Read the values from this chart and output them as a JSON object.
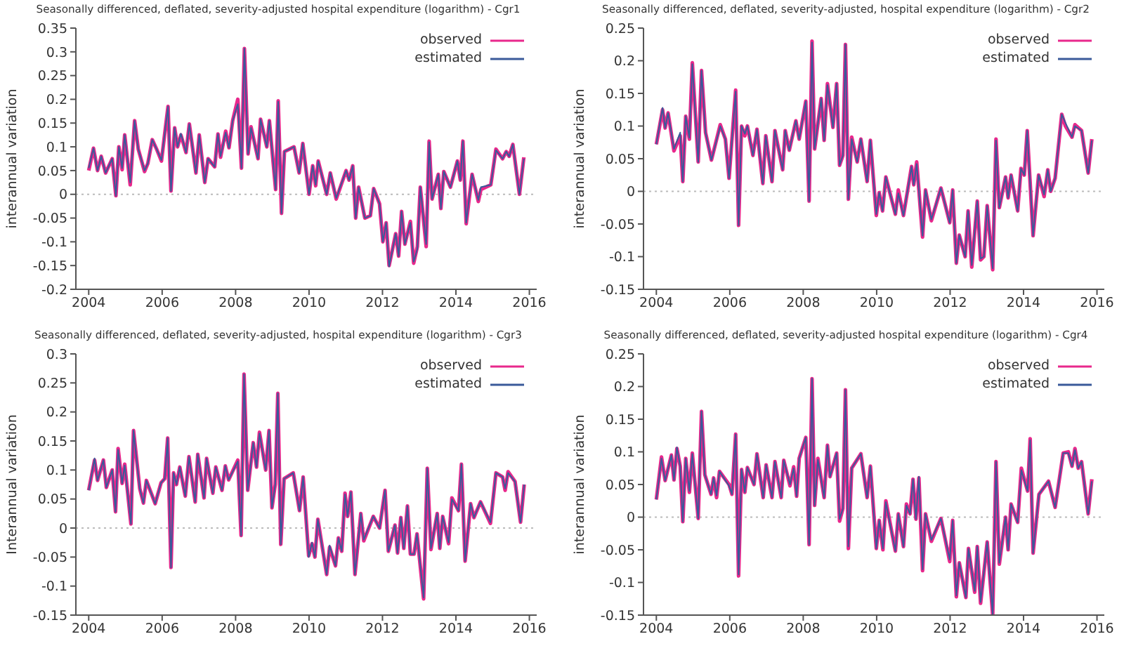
{
  "chart_data": [
    {
      "type": "line",
      "title": "Seasonally differenced, deflated, severity-adjusted hospital expenditure (logarithm) - Cgr1",
      "ylabel": "interannual variation",
      "xlim": [
        2003.65,
        2016.2
      ],
      "xticks": [
        2004,
        2006,
        2008,
        2010,
        2012,
        2014,
        2016
      ],
      "ylim": [
        -0.2,
        0.35
      ],
      "yticks": [
        -0.2,
        -0.15,
        -0.1,
        -0.05,
        0,
        0.05,
        0.1,
        0.15,
        0.2,
        0.25,
        0.3,
        0.35
      ],
      "legend": "top right",
      "ref_lines": [
        {
          "axis": "y",
          "value": 0,
          "color": "#bbbbbb",
          "line_style": "dotted"
        }
      ],
      "x": [
        2004.0,
        2004.13,
        2004.24,
        2004.34,
        2004.46,
        2004.64,
        2004.74,
        2004.82,
        2004.91,
        2004.98,
        2005.13,
        2005.25,
        2005.35,
        2005.52,
        2005.61,
        2005.73,
        2005.85,
        2005.98,
        2006.16,
        2006.24,
        2006.34,
        2006.42,
        2006.51,
        2006.65,
        2006.74,
        2006.92,
        2007.01,
        2007.16,
        2007.25,
        2007.43,
        2007.52,
        2007.59,
        2007.73,
        2007.82,
        2007.92,
        2008.06,
        2008.16,
        2008.24,
        2008.34,
        2008.42,
        2008.61,
        2008.68,
        2008.85,
        2008.92,
        2009.09,
        2009.16,
        2009.25,
        2009.33,
        2009.59,
        2009.73,
        2009.83,
        2010.0,
        2010.1,
        2010.18,
        2010.25,
        2010.48,
        2010.58,
        2010.74,
        2011.01,
        2011.09,
        2011.19,
        2011.27,
        2011.35,
        2011.52,
        2011.67,
        2011.76,
        2011.92,
        2012.01,
        2012.1,
        2012.18,
        2012.36,
        2012.44,
        2012.52,
        2012.61,
        2012.76,
        2012.85,
        2012.95,
        2013.03,
        2013.19,
        2013.27,
        2013.35,
        2013.52,
        2013.59,
        2013.67,
        2013.85,
        2014.04,
        2014.12,
        2014.19,
        2014.28,
        2014.44,
        2014.61,
        2014.68,
        2014.95,
        2015.09,
        2015.27,
        2015.37,
        2015.45,
        2015.55,
        2015.73,
        2015.85
      ],
      "series": [
        {
          "name": "observed",
          "color": "#e8288c",
          "values": [
            0.05,
            0.097,
            0.05,
            0.08,
            0.045,
            0.075,
            -0.003,
            0.1,
            0.052,
            0.125,
            0.02,
            0.155,
            0.095,
            0.048,
            0.065,
            0.115,
            0.095,
            0.07,
            0.185,
            0.007,
            0.14,
            0.1,
            0.125,
            0.088,
            0.148,
            0.045,
            0.125,
            0.025,
            0.075,
            0.058,
            0.127,
            0.078,
            0.133,
            0.098,
            0.155,
            0.2,
            0.055,
            0.307,
            0.085,
            0.142,
            0.075,
            0.158,
            0.1,
            0.155,
            0.01,
            0.197,
            -0.04,
            0.09,
            0.1,
            0.045,
            0.107,
            0.0,
            0.06,
            0.018,
            0.07,
            0.0,
            0.045,
            -0.01,
            0.05,
            0.03,
            0.06,
            -0.05,
            0.015,
            -0.05,
            -0.045,
            0.012,
            -0.02,
            -0.1,
            -0.06,
            -0.15,
            -0.083,
            -0.13,
            -0.036,
            -0.105,
            -0.057,
            -0.145,
            -0.11,
            0.015,
            -0.11,
            0.112,
            -0.01,
            0.042,
            -0.03,
            0.048,
            0.015,
            0.07,
            0.03,
            0.112,
            -0.062,
            0.042,
            -0.015,
            0.01,
            0.02,
            0.095,
            0.075,
            0.09,
            0.08,
            0.105,
            0.0,
            0.078
          ]
        },
        {
          "name": "estimated",
          "color": "#3a5a9a",
          "values": [
            0.055,
            0.097,
            0.05,
            0.08,
            0.045,
            0.075,
            -0.003,
            0.1,
            0.055,
            0.125,
            0.025,
            0.155,
            0.095,
            0.05,
            0.065,
            0.115,
            0.095,
            0.072,
            0.185,
            0.007,
            0.14,
            0.1,
            0.128,
            0.088,
            0.148,
            0.045,
            0.125,
            0.025,
            0.075,
            0.058,
            0.127,
            0.08,
            0.13,
            0.098,
            0.155,
            0.19,
            0.055,
            0.307,
            0.085,
            0.14,
            0.075,
            0.158,
            0.1,
            0.155,
            0.01,
            0.195,
            -0.04,
            0.09,
            0.1,
            0.045,
            0.107,
            0.0,
            0.06,
            0.02,
            0.07,
            0.0,
            0.045,
            -0.008,
            0.05,
            0.03,
            0.06,
            -0.05,
            0.015,
            -0.05,
            -0.045,
            0.012,
            -0.02,
            -0.1,
            -0.06,
            -0.152,
            -0.083,
            -0.13,
            -0.036,
            -0.105,
            -0.06,
            -0.142,
            -0.115,
            0.015,
            -0.105,
            0.11,
            -0.01,
            0.042,
            -0.03,
            0.048,
            0.015,
            0.07,
            0.03,
            0.112,
            -0.06,
            0.042,
            -0.012,
            0.015,
            0.02,
            0.093,
            0.075,
            0.09,
            0.08,
            0.105,
            0.0,
            0.075
          ]
        }
      ]
    },
    {
      "type": "line",
      "title": "Seasonally differenced, deflated, severity-adjusted, hospital expenditure (logarithm) - Cgr2",
      "ylabel": "interannual variation",
      "xlim": [
        2003.65,
        2016.2
      ],
      "xticks": [
        2004,
        2006,
        2008,
        2010,
        2012,
        2014,
        2016
      ],
      "ylim": [
        -0.15,
        0.25
      ],
      "yticks": [
        -0.15,
        -0.1,
        -0.05,
        0,
        0.05,
        0.1,
        0.15,
        0.2,
        0.25
      ],
      "legend": "top right",
      "ref_lines": [
        {
          "axis": "y",
          "value": 0,
          "color": "#bbbbbb",
          "line_style": "dotted"
        }
      ],
      "x": [
        2004.0,
        2004.17,
        2004.24,
        2004.32,
        2004.48,
        2004.65,
        2004.72,
        2004.8,
        2004.9,
        2004.98,
        2005.14,
        2005.23,
        2005.34,
        2005.5,
        2005.74,
        2005.88,
        2005.98,
        2006.16,
        2006.24,
        2006.32,
        2006.41,
        2006.48,
        2006.63,
        2006.74,
        2006.9,
        2006.98,
        2007.15,
        2007.23,
        2007.44,
        2007.51,
        2007.62,
        2007.8,
        2007.89,
        2008.07,
        2008.16,
        2008.24,
        2008.31,
        2008.49,
        2008.57,
        2008.66,
        2008.81,
        2008.91,
        2008.99,
        2009.08,
        2009.15,
        2009.23,
        2009.32,
        2009.47,
        2009.57,
        2009.74,
        2009.83,
        2009.99,
        2010.07,
        2010.16,
        2010.25,
        2010.51,
        2010.59,
        2010.73,
        2010.95,
        2011.01,
        2011.09,
        2011.25,
        2011.33,
        2011.49,
        2011.75,
        2011.99,
        2012.07,
        2012.17,
        2012.25,
        2012.41,
        2012.49,
        2012.59,
        2012.74,
        2012.83,
        2012.92,
        2013.01,
        2013.16,
        2013.25,
        2013.34,
        2013.51,
        2013.58,
        2013.66,
        2013.84,
        2013.93,
        2014.02,
        2014.1,
        2014.26,
        2014.41,
        2014.56,
        2014.66,
        2014.74,
        2014.86,
        2015.04,
        2015.14,
        2015.32,
        2015.4,
        2015.58,
        2015.76,
        2015.86
      ],
      "series": [
        {
          "name": "observed",
          "color": "#e8288c",
          "values": [
            0.072,
            0.125,
            0.097,
            0.12,
            0.062,
            0.085,
            0.015,
            0.115,
            0.08,
            0.197,
            0.045,
            0.185,
            0.09,
            0.048,
            0.102,
            0.08,
            0.02,
            0.155,
            -0.052,
            0.1,
            0.085,
            0.1,
            0.055,
            0.095,
            0.012,
            0.085,
            0.015,
            0.093,
            0.033,
            0.093,
            0.063,
            0.108,
            0.08,
            0.138,
            -0.015,
            0.23,
            0.065,
            0.142,
            0.078,
            0.165,
            0.098,
            0.165,
            0.04,
            0.055,
            0.225,
            -0.012,
            0.083,
            0.045,
            0.08,
            0.015,
            0.078,
            -0.037,
            -0.002,
            -0.03,
            0.022,
            -0.035,
            0.002,
            -0.037,
            0.038,
            0.01,
            0.045,
            -0.07,
            0.002,
            -0.045,
            0.005,
            -0.048,
            0.002,
            -0.11,
            -0.067,
            -0.1,
            -0.03,
            -0.116,
            -0.015,
            -0.105,
            -0.1,
            -0.022,
            -0.12,
            0.08,
            -0.025,
            0.022,
            -0.01,
            0.025,
            -0.03,
            0.035,
            0.025,
            0.093,
            -0.068,
            0.025,
            -0.008,
            0.033,
            0.0,
            0.02,
            0.118,
            0.1,
            0.083,
            0.102,
            0.093,
            0.028,
            0.08
          ]
        },
        {
          "name": "estimated",
          "color": "#3a5a9a",
          "values": [
            0.072,
            0.128,
            0.097,
            0.12,
            0.065,
            0.09,
            0.015,
            0.115,
            0.082,
            0.195,
            0.045,
            0.185,
            0.09,
            0.048,
            0.1,
            0.08,
            0.02,
            0.153,
            -0.052,
            0.1,
            0.088,
            0.1,
            0.055,
            0.095,
            0.012,
            0.085,
            0.015,
            0.093,
            0.033,
            0.093,
            0.063,
            0.108,
            0.08,
            0.138,
            -0.015,
            0.228,
            0.065,
            0.142,
            0.078,
            0.163,
            0.098,
            0.165,
            0.04,
            0.055,
            0.225,
            -0.012,
            0.08,
            0.045,
            0.08,
            0.015,
            0.078,
            -0.035,
            -0.002,
            -0.03,
            0.022,
            -0.035,
            -0.003,
            -0.037,
            0.038,
            0.01,
            0.042,
            -0.068,
            0.002,
            -0.043,
            0.005,
            -0.048,
            0.002,
            -0.11,
            -0.067,
            -0.1,
            -0.03,
            -0.113,
            -0.015,
            -0.103,
            -0.1,
            -0.022,
            -0.118,
            0.078,
            -0.025,
            0.022,
            -0.01,
            0.025,
            -0.03,
            0.035,
            0.025,
            0.093,
            -0.068,
            0.025,
            -0.005,
            0.033,
            0.0,
            0.02,
            0.118,
            0.105,
            0.083,
            0.1,
            0.093,
            0.028,
            0.078
          ]
        }
      ]
    },
    {
      "type": "line",
      "title": "Seasonally differenced, deflated, severity-adjusted, hospital expenditure (logarithm) - Cgr3",
      "ylabel": "Interannual variation",
      "xlim": [
        2003.65,
        2016.2
      ],
      "xticks": [
        2004,
        2006,
        2008,
        2010,
        2012,
        2014,
        2016
      ],
      "ylim": [
        -0.15,
        0.3
      ],
      "yticks": [
        -0.15,
        -0.1,
        -0.05,
        0,
        0.05,
        0.1,
        0.15,
        0.2,
        0.25,
        0.3
      ],
      "legend": "top right",
      "ref_lines": [
        {
          "axis": "y",
          "value": 0,
          "color": "#bbbbbb",
          "line_style": "dotted"
        }
      ],
      "x": [
        2004.0,
        2004.16,
        2004.24,
        2004.4,
        2004.48,
        2004.64,
        2004.73,
        2004.8,
        2004.91,
        2004.98,
        2005.15,
        2005.22,
        2005.39,
        2005.49,
        2005.57,
        2005.81,
        2005.97,
        2006.07,
        2006.15,
        2006.24,
        2006.31,
        2006.39,
        2006.48,
        2006.63,
        2006.73,
        2006.9,
        2006.97,
        2007.14,
        2007.21,
        2007.38,
        2007.46,
        2007.63,
        2007.72,
        2007.81,
        2008.06,
        2008.15,
        2008.23,
        2008.33,
        2008.48,
        2008.57,
        2008.65,
        2008.82,
        2008.91,
        2008.99,
        2009.08,
        2009.15,
        2009.23,
        2009.32,
        2009.57,
        2009.74,
        2009.84,
        2009.99,
        2010.08,
        2010.16,
        2010.24,
        2010.48,
        2010.56,
        2010.72,
        2010.8,
        2010.89,
        2010.98,
        2011.05,
        2011.14,
        2011.25,
        2011.41,
        2011.49,
        2011.75,
        2011.92,
        2012.07,
        2012.16,
        2012.34,
        2012.41,
        2012.5,
        2012.58,
        2012.68,
        2012.76,
        2012.86,
        2012.94,
        2013.12,
        2013.22,
        2013.32,
        2013.49,
        2013.56,
        2013.64,
        2013.8,
        2013.89,
        2014.07,
        2014.15,
        2014.25,
        2014.4,
        2014.49,
        2014.67,
        2014.94,
        2015.09,
        2015.27,
        2015.34,
        2015.42,
        2015.61,
        2015.76,
        2015.86
      ],
      "series": [
        {
          "name": "observed",
          "color": "#e8288c",
          "values": [
            0.065,
            0.117,
            0.082,
            0.117,
            0.07,
            0.1,
            0.028,
            0.137,
            0.077,
            0.11,
            0.007,
            0.168,
            0.068,
            0.043,
            0.082,
            0.042,
            0.078,
            0.085,
            0.155,
            -0.068,
            0.095,
            0.075,
            0.105,
            0.055,
            0.123,
            0.045,
            0.127,
            0.052,
            0.12,
            0.06,
            0.105,
            0.065,
            0.107,
            0.083,
            0.117,
            -0.013,
            0.265,
            0.065,
            0.147,
            0.105,
            0.165,
            0.1,
            0.168,
            0.035,
            0.075,
            0.232,
            -0.028,
            0.085,
            0.095,
            0.03,
            0.088,
            -0.048,
            -0.027,
            -0.05,
            0.015,
            -0.08,
            -0.033,
            -0.065,
            -0.017,
            -0.04,
            0.06,
            0.02,
            0.062,
            -0.08,
            0.025,
            -0.022,
            0.02,
            0.0,
            0.065,
            -0.04,
            0.005,
            -0.043,
            0.018,
            -0.035,
            0.038,
            -0.045,
            -0.045,
            -0.01,
            -0.122,
            0.103,
            -0.037,
            0.025,
            -0.035,
            0.02,
            -0.027,
            0.052,
            0.03,
            0.11,
            -0.057,
            0.042,
            0.018,
            0.045,
            0.008,
            0.095,
            0.088,
            0.065,
            0.097,
            0.08,
            0.01,
            0.075
          ]
        },
        {
          "name": "estimated",
          "color": "#3a5a9a",
          "values": [
            0.065,
            0.12,
            0.082,
            0.117,
            0.07,
            0.1,
            0.028,
            0.135,
            0.077,
            0.108,
            0.007,
            0.168,
            0.068,
            0.043,
            0.082,
            0.042,
            0.078,
            0.085,
            0.155,
            -0.068,
            0.095,
            0.075,
            0.105,
            0.055,
            0.123,
            0.045,
            0.127,
            0.052,
            0.12,
            0.06,
            0.105,
            0.065,
            0.107,
            0.083,
            0.115,
            -0.013,
            0.265,
            0.065,
            0.147,
            0.105,
            0.163,
            0.1,
            0.168,
            0.035,
            0.075,
            0.232,
            -0.028,
            0.085,
            0.095,
            0.03,
            0.088,
            -0.05,
            -0.025,
            -0.05,
            0.015,
            -0.08,
            -0.03,
            -0.065,
            -0.017,
            -0.04,
            0.058,
            0.02,
            0.062,
            -0.08,
            0.025,
            -0.02,
            0.02,
            0.0,
            0.065,
            -0.04,
            0.005,
            -0.043,
            0.018,
            -0.035,
            0.038,
            -0.045,
            -0.045,
            -0.01,
            -0.12,
            0.103,
            -0.035,
            0.025,
            -0.035,
            0.02,
            -0.025,
            0.05,
            0.03,
            0.11,
            -0.057,
            0.042,
            0.018,
            0.045,
            0.01,
            0.095,
            0.088,
            0.068,
            0.095,
            0.08,
            0.01,
            0.075
          ]
        }
      ]
    },
    {
      "type": "line",
      "title": "Seasonally differenced, deflated, severity-adjusted hospital expenditure (logarithm) - Cgr4",
      "ylabel": "interannual variation",
      "xlim": [
        2003.65,
        2016.2
      ],
      "xticks": [
        2004,
        2006,
        2008,
        2010,
        2012,
        2014,
        2016
      ],
      "ylim": [
        -0.15,
        0.25
      ],
      "yticks": [
        -0.15,
        -0.1,
        -0.05,
        0,
        0.05,
        0.1,
        0.15,
        0.2,
        0.25
      ],
      "legend": "top right",
      "ref_lines": [
        {
          "axis": "y",
          "value": 0,
          "color": "#bbbbbb",
          "line_style": "dotted"
        }
      ],
      "x": [
        2004.0,
        2004.14,
        2004.24,
        2004.41,
        2004.48,
        2004.56,
        2004.65,
        2004.72,
        2004.8,
        2004.9,
        2004.98,
        2005.14,
        2005.23,
        2005.32,
        2005.49,
        2005.56,
        2005.64,
        2005.72,
        2005.98,
        2006.06,
        2006.16,
        2006.24,
        2006.32,
        2006.41,
        2006.48,
        2006.66,
        2006.74,
        2006.91,
        2006.99,
        2007.15,
        2007.23,
        2007.4,
        2007.47,
        2007.64,
        2007.74,
        2007.82,
        2007.89,
        2008.07,
        2008.16,
        2008.24,
        2008.31,
        2008.4,
        2008.57,
        2008.66,
        2008.73,
        2008.91,
        2008.99,
        2009.08,
        2009.15,
        2009.23,
        2009.32,
        2009.57,
        2009.74,
        2009.83,
        2009.99,
        2010.07,
        2010.17,
        2010.25,
        2010.51,
        2010.59,
        2010.73,
        2010.81,
        2010.91,
        2010.99,
        2011.07,
        2011.15,
        2011.25,
        2011.33,
        2011.49,
        2011.75,
        2011.99,
        2012.07,
        2012.17,
        2012.25,
        2012.43,
        2012.5,
        2012.67,
        2012.74,
        2012.83,
        2013.01,
        2013.16,
        2013.25,
        2013.34,
        2013.51,
        2013.58,
        2013.66,
        2013.84,
        2013.94,
        2014.11,
        2014.18,
        2014.26,
        2014.42,
        2014.68,
        2014.86,
        2015.08,
        2015.22,
        2015.32,
        2015.4,
        2015.49,
        2015.58,
        2015.76,
        2015.86
      ],
      "series": [
        {
          "name": "observed",
          "color": "#e8288c",
          "values": [
            0.027,
            0.092,
            0.056,
            0.095,
            0.057,
            0.105,
            0.078,
            -0.007,
            0.09,
            0.038,
            0.098,
            -0.002,
            0.162,
            0.065,
            0.035,
            0.06,
            0.03,
            0.07,
            0.05,
            0.035,
            0.127,
            -0.09,
            0.073,
            0.038,
            0.076,
            0.05,
            0.097,
            0.03,
            0.08,
            0.03,
            0.085,
            0.03,
            0.087,
            0.048,
            0.077,
            0.032,
            0.09,
            0.122,
            -0.042,
            0.212,
            0.018,
            0.09,
            0.03,
            0.11,
            0.062,
            0.098,
            -0.006,
            0.013,
            0.195,
            -0.048,
            0.075,
            0.097,
            0.03,
            0.078,
            -0.048,
            -0.005,
            -0.05,
            0.025,
            -0.052,
            0.005,
            -0.045,
            0.02,
            0.005,
            0.058,
            -0.003,
            0.06,
            -0.082,
            0.005,
            -0.037,
            -0.002,
            -0.068,
            -0.005,
            -0.122,
            -0.07,
            -0.123,
            -0.048,
            -0.115,
            -0.045,
            -0.132,
            -0.038,
            -0.15,
            0.085,
            -0.072,
            0.0,
            -0.05,
            0.02,
            -0.008,
            0.075,
            0.04,
            0.12,
            -0.055,
            0.035,
            0.055,
            0.015,
            0.098,
            0.1,
            0.078,
            0.105,
            0.075,
            0.085,
            0.005,
            0.058
          ]
        },
        {
          "name": "estimated",
          "color": "#3a5a9a",
          "values": [
            0.027,
            0.09,
            0.056,
            0.095,
            0.057,
            0.107,
            0.078,
            -0.007,
            0.09,
            0.04,
            0.097,
            -0.002,
            0.162,
            0.065,
            0.035,
            0.06,
            0.033,
            0.07,
            0.048,
            0.035,
            0.127,
            -0.088,
            0.073,
            0.038,
            0.076,
            0.05,
            0.097,
            0.03,
            0.08,
            0.03,
            0.085,
            0.03,
            0.087,
            0.05,
            0.075,
            0.032,
            0.09,
            0.122,
            -0.042,
            0.212,
            0.018,
            0.088,
            0.03,
            0.11,
            0.062,
            0.098,
            -0.003,
            0.013,
            0.195,
            -0.045,
            0.075,
            0.097,
            0.03,
            0.078,
            -0.048,
            -0.005,
            -0.048,
            0.023,
            -0.052,
            0.005,
            -0.045,
            0.018,
            0.005,
            0.058,
            -0.003,
            0.062,
            -0.08,
            0.005,
            -0.035,
            -0.002,
            -0.065,
            -0.005,
            -0.12,
            -0.07,
            -0.123,
            -0.048,
            -0.113,
            -0.045,
            -0.13,
            -0.038,
            -0.15,
            0.085,
            -0.07,
            0.0,
            -0.05,
            0.02,
            -0.008,
            0.072,
            0.04,
            0.118,
            -0.055,
            0.035,
            0.055,
            0.015,
            0.098,
            0.098,
            0.078,
            0.103,
            0.075,
            0.085,
            0.005,
            0.055
          ]
        }
      ]
    }
  ]
}
